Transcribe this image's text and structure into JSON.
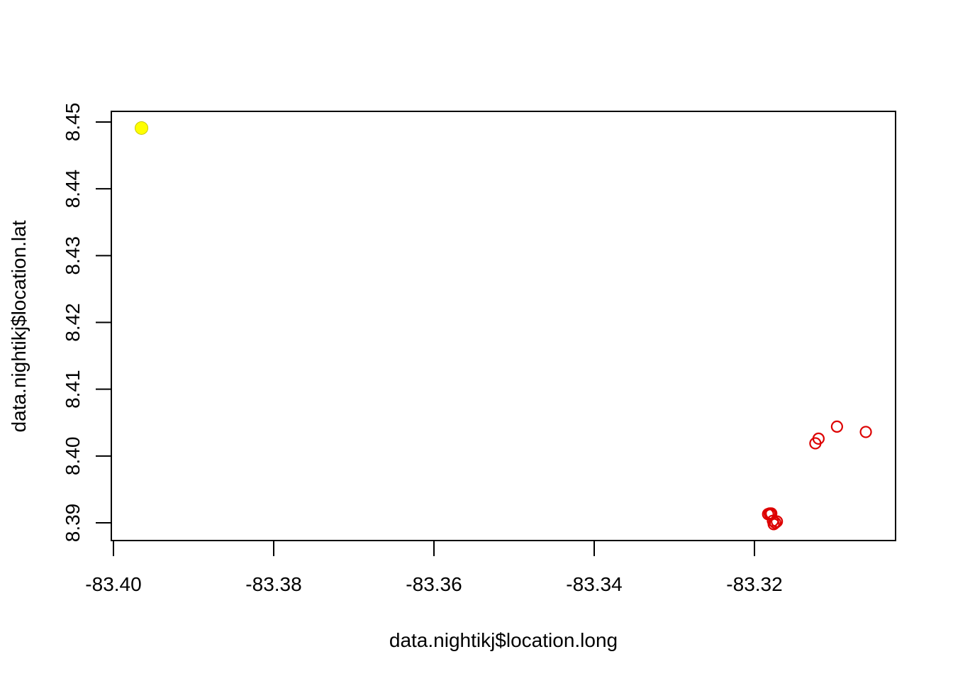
{
  "chart_data": {
    "type": "scatter",
    "xlabel": "data.nightikj$location.long",
    "ylabel": "data.nightikj$location.lat",
    "xlim": [
      -83.4,
      -83.305
    ],
    "ylim": [
      8.3875,
      8.4515
    ],
    "x_ticks": [
      "-83.40",
      "-83.38",
      "-83.36",
      "-83.34",
      "-83.32"
    ],
    "x_tick_values": [
      -83.4,
      -83.38,
      -83.36,
      -83.34,
      -83.32
    ],
    "y_ticks": [
      "8.39",
      "8.40",
      "8.41",
      "8.42",
      "8.43",
      "8.44",
      "8.45"
    ],
    "y_tick_values": [
      8.39,
      8.4,
      8.41,
      8.42,
      8.43,
      8.44,
      8.45
    ],
    "grid": false,
    "series": [
      {
        "marker": "filled-circle",
        "color": "#ffff00",
        "points": [
          {
            "x": -83.3965,
            "y": 8.4491
          }
        ]
      },
      {
        "marker": "open-circle",
        "color": "#dd0000",
        "points": [
          {
            "x": -83.3183,
            "y": 8.3913
          },
          {
            "x": -83.3181,
            "y": 8.3914
          },
          {
            "x": -83.318,
            "y": 8.3912
          },
          {
            "x": -83.3179,
            "y": 8.3914
          },
          {
            "x": -83.3177,
            "y": 8.3903
          },
          {
            "x": -83.3176,
            "y": 8.3898
          },
          {
            "x": -83.3174,
            "y": 8.39
          },
          {
            "x": -83.3172,
            "y": 8.3902
          },
          {
            "x": -83.3124,
            "y": 8.4019
          },
          {
            "x": -83.312,
            "y": 8.4026
          },
          {
            "x": -83.3097,
            "y": 8.4044
          },
          {
            "x": -83.3061,
            "y": 8.4036
          }
        ]
      }
    ]
  }
}
